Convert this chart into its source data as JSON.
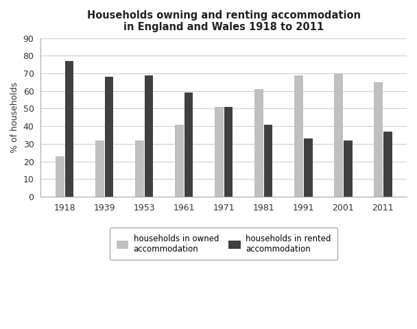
{
  "title": "Households owning and renting accommodation\nin England and Wales 1918 to 2011",
  "ylabel": "% of households",
  "years": [
    1918,
    1939,
    1953,
    1961,
    1971,
    1981,
    1991,
    2001,
    2011
  ],
  "owned": [
    23,
    32,
    32,
    41,
    51,
    61,
    69,
    70,
    65
  ],
  "rented": [
    77,
    68,
    69,
    59,
    51,
    41,
    33,
    32,
    37
  ],
  "owned_color": "#c0c0c0",
  "rented_color": "#404040",
  "ylim": [
    0,
    90
  ],
  "yticks": [
    0,
    10,
    20,
    30,
    40,
    50,
    60,
    70,
    80,
    90
  ],
  "bar_width": 0.22,
  "bar_gap": 0.02,
  "legend_owned": "households in owned\naccommodation",
  "legend_rented": "households in rented\naccommodation",
  "title_fontsize": 10.5,
  "axis_fontsize": 9,
  "tick_fontsize": 9,
  "legend_fontsize": 8.5,
  "bg_color": "#ffffff",
  "grid_color": "#d0d0d0"
}
